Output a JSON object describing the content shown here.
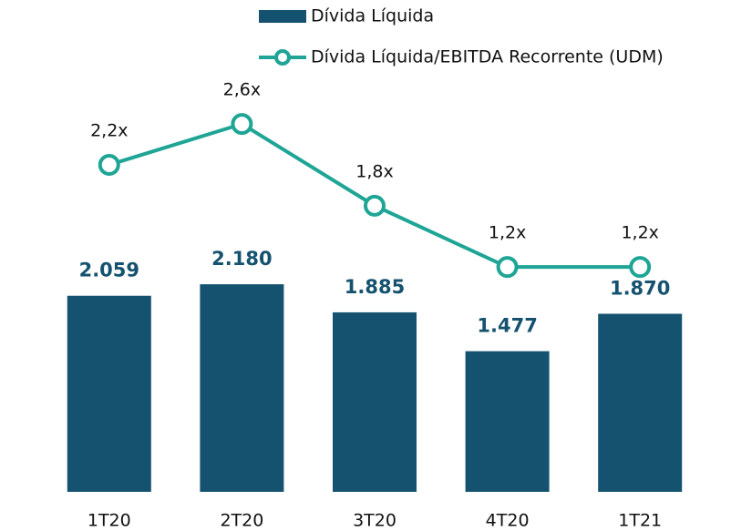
{
  "chart_data": {
    "type": "combo",
    "categories": [
      "1T20",
      "2T20",
      "3T20",
      "4T20",
      "1T21"
    ],
    "series": [
      {
        "name": "Dívida Líquida",
        "type": "bar",
        "color": "#15526f",
        "values": [
          2059,
          2180,
          1885,
          1477,
          1870
        ],
        "value_labels": [
          "2.059",
          "2.180",
          "1.885",
          "1.477",
          "1.870"
        ]
      },
      {
        "name": "Dívida Líquida/EBITDA Recorrente (UDM)",
        "type": "line",
        "axis": "y2",
        "color": "#1fa595",
        "values": [
          2.2,
          2.6,
          1.8,
          1.2,
          1.2
        ],
        "value_labels": [
          "2,2x",
          "2,6x",
          "1,8x",
          "1,2x",
          "1,2x"
        ]
      }
    ],
    "ylim": [
      0,
      4400
    ],
    "y2lim": [
      -1,
      3.1
    ],
    "legend": "top"
  }
}
